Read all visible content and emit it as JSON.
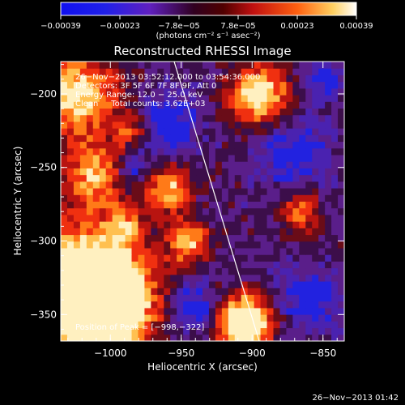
{
  "chart_data": {
    "type": "heatmap",
    "title": "Reconstructed RHESSI Image",
    "xlabel": "Heliocentric X (arcsec)",
    "ylabel": "Heliocentric Y (arcsec)",
    "xlim": [
      -1035,
      -835
    ],
    "ylim": [
      -368,
      -178
    ],
    "x_ticks": [
      -1000,
      -950,
      -900,
      -850
    ],
    "x_tick_labels": [
      "−1000",
      "−950",
      "−900",
      "−850"
    ],
    "y_ticks": [
      -200,
      -250,
      -300,
      -350
    ],
    "y_tick_labels": [
      "−200",
      "−250",
      "−300",
      "−350"
    ],
    "colorbar": {
      "range": [
        -0.00039,
        0.00039
      ],
      "tick_labels": [
        "−0.00039",
        "−0.00023",
        "−7.8e−05",
        "7.8e−05",
        "0.00023",
        "0.00039"
      ],
      "unit": "(photons cm⁻² s⁻¹ asec⁻²)"
    },
    "annotations": [
      "26−Nov−2013 03:52:12.000 to 03:54:36.000",
      "Detectors: 3F 5F 6F 7F 8F 9F, Att 0",
      "Energy Range: 12.0 − 25.0 keV",
      "Clean     Total counts: 3.62E+03"
    ],
    "peak_label": "Position of Peak = [−998,−322]",
    "peak_position": [
      -998,
      -322
    ],
    "limb_line": [
      [
        -955,
        -178
      ],
      [
        -895,
        -368
      ]
    ],
    "colors": [
      "#2020e8",
      "#5020a0",
      "#3a1050",
      "#7a1020",
      "#e02010",
      "#ff8020",
      "#ffe0a0",
      "#ffffff"
    ]
  },
  "timestamp": "26−Nov−2013 01:42"
}
